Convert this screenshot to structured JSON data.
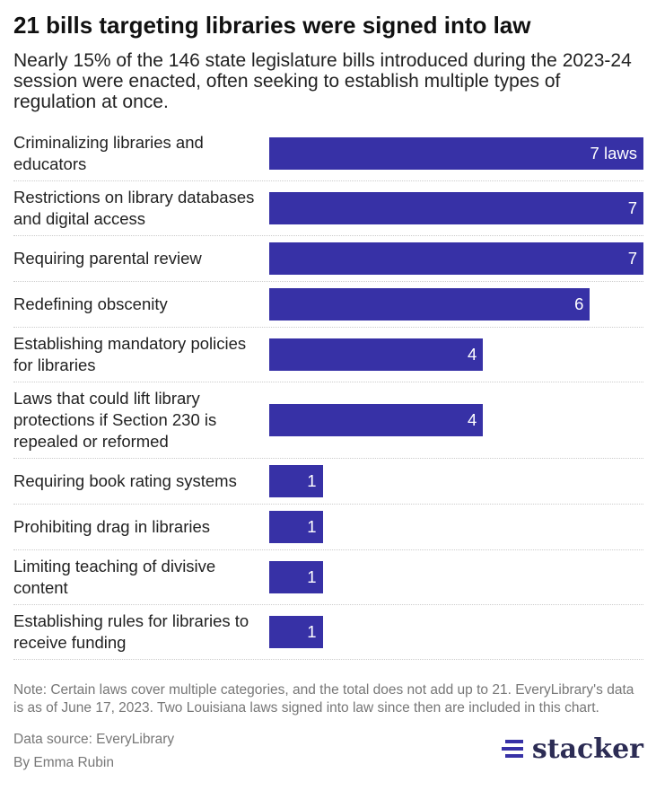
{
  "chart_data": {
    "type": "bar",
    "orientation": "horizontal",
    "title": "21 bills targeting libraries were signed into law",
    "subtitle": "Nearly 15% of the 146 state legislature bills introduced during the 2023-24 session were enacted, often seeking to establish multiple types of regulation at once.",
    "categories": [
      "Criminalizing libraries and educators",
      "Restrictions on library databases and digital access",
      "Requiring parental review",
      "Redefining obscenity",
      "Establishing mandatory policies for libraries",
      "Laws that could lift library protections if Section 230 is repealed or reformed",
      "Requiring book rating systems",
      "Prohibiting drag in libraries",
      "Limiting teaching of divisive content",
      "Establishing rules for libraries to receive funding"
    ],
    "values": [
      7,
      7,
      7,
      6,
      4,
      4,
      1,
      1,
      1,
      1
    ],
    "value_labels": [
      "7 laws",
      "7",
      "7",
      "6",
      "4",
      "4",
      "1",
      "1",
      "1",
      "1"
    ],
    "color": "#3731a6",
    "note": "Note: Certain laws cover multiple categories, and the total does not add up to 21. EveryLibrary's data is as of June 17, 2023. Two Louisiana laws signed into law since then are included in this chart.",
    "source": "Data source: EveryLibrary",
    "byline": "By Emma Rubin",
    "logo": "stacker"
  }
}
